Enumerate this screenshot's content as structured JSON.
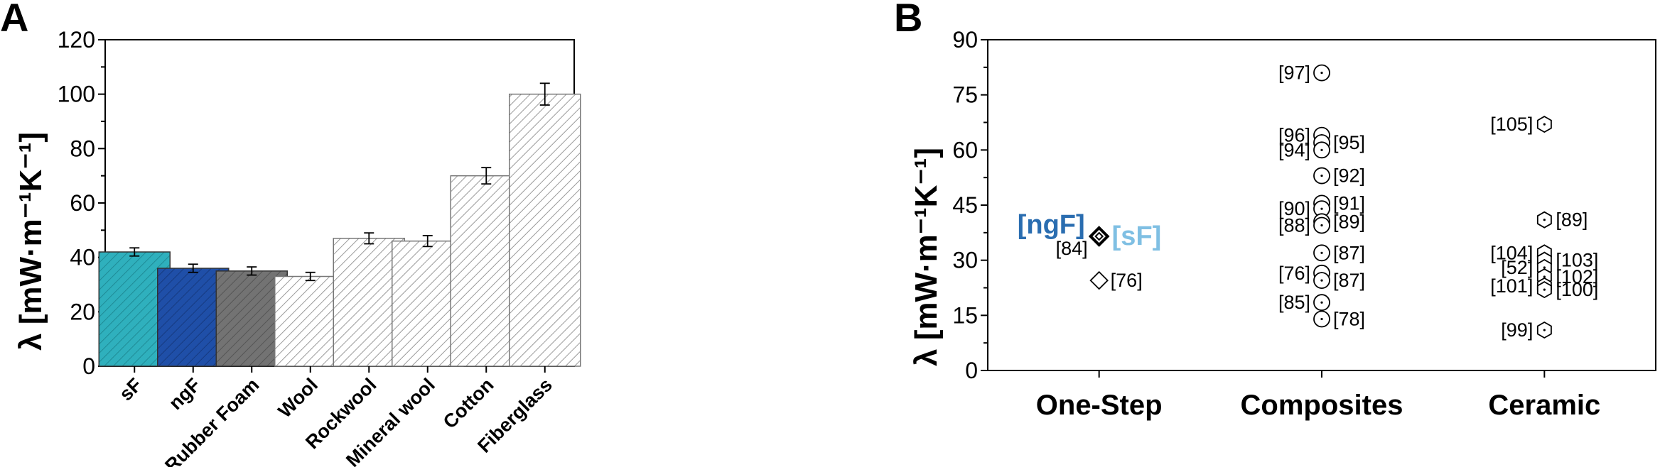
{
  "panels": {
    "a": {
      "letter": "A"
    },
    "b": {
      "letter": "B"
    }
  },
  "colors": {
    "sF": "#2fb0bd",
    "ngF": "#1f4fa8",
    "rubber": "#737373",
    "others": "#ffffff",
    "ngF_label": "#2a6db0",
    "sF_label": "#7fbfe3"
  },
  "chart_data": [
    {
      "type": "bar",
      "panel": "A",
      "ylabel": "λ [mW·m⁻¹K⁻¹]",
      "xlabel": "",
      "ylim": [
        0,
        120
      ],
      "yticks": [
        "0",
        "20",
        "40",
        "60",
        "80",
        "100",
        "120"
      ],
      "categories": [
        "sF",
        "ngF",
        "Rubber Foam",
        "Wool",
        "Rockwool",
        "Mineral wool",
        "Cotton",
        "Fiberglass"
      ],
      "values": [
        42,
        36,
        35,
        33,
        47,
        46,
        70,
        100
      ],
      "errors": [
        1.5,
        1.5,
        1.5,
        1.5,
        2,
        2,
        3,
        4
      ]
    },
    {
      "type": "scatter",
      "panel": "B",
      "ylabel": "λ [mW·m⁻¹K⁻¹]",
      "ylim": [
        0,
        90
      ],
      "yticks": [
        "0",
        "15",
        "30",
        "45",
        "60",
        "75",
        "90"
      ],
      "categories": [
        "One-Step",
        "Composites",
        "Ceramic"
      ],
      "groups": [
        {
          "category": "One-Step",
          "marker": "diamond",
          "points": [
            {
              "y": 36.5,
              "label": "[84]",
              "side": "left"
            },
            {
              "y": 36.5,
              "label": "[ngF]",
              "side": "left-big"
            },
            {
              "y": 36.5,
              "label": "[sF]",
              "side": "right-big"
            },
            {
              "y": 24.5,
              "label": "[76]",
              "side": "right"
            }
          ]
        },
        {
          "category": "Composites",
          "marker": "circle",
          "points": [
            {
              "y": 81,
              "label": "[97]",
              "side": "left"
            },
            {
              "y": 64,
              "label": "[96]",
              "side": "left"
            },
            {
              "y": 62,
              "label": "[95]",
              "side": "right"
            },
            {
              "y": 60,
              "label": "[94]",
              "side": "left"
            },
            {
              "y": 53,
              "label": "[92]",
              "side": "right"
            },
            {
              "y": 45.5,
              "label": "[91]",
              "side": "right"
            },
            {
              "y": 44,
              "label": "[90]",
              "side": "left"
            },
            {
              "y": 40.5,
              "label": "[89]",
              "side": "right"
            },
            {
              "y": 39.5,
              "label": "[88]",
              "side": "left"
            },
            {
              "y": 32,
              "label": "[87]",
              "side": "right"
            },
            {
              "y": 26.5,
              "label": "[76]",
              "side": "left"
            },
            {
              "y": 24.5,
              "label": "[87]",
              "side": "right"
            },
            {
              "y": 18.5,
              "label": "[85]",
              "side": "left"
            },
            {
              "y": 14,
              "label": "[78]",
              "side": "right"
            }
          ]
        },
        {
          "category": "Ceramic",
          "marker": "hexagon",
          "points": [
            {
              "y": 67,
              "label": "[105]",
              "side": "left"
            },
            {
              "y": 41,
              "label": "[89]",
              "side": "right"
            },
            {
              "y": 32,
              "label": "[104]",
              "side": "left"
            },
            {
              "y": 30,
              "label": "[103]",
              "side": "right"
            },
            {
              "y": 28,
              "label": "[52]",
              "side": "left"
            },
            {
              "y": 25.5,
              "label": "[102]",
              "side": "right"
            },
            {
              "y": 23,
              "label": "[101]",
              "side": "left"
            },
            {
              "y": 22,
              "label": "[100]",
              "side": "right"
            },
            {
              "y": 11,
              "label": "[99]",
              "side": "left"
            }
          ]
        }
      ]
    }
  ]
}
